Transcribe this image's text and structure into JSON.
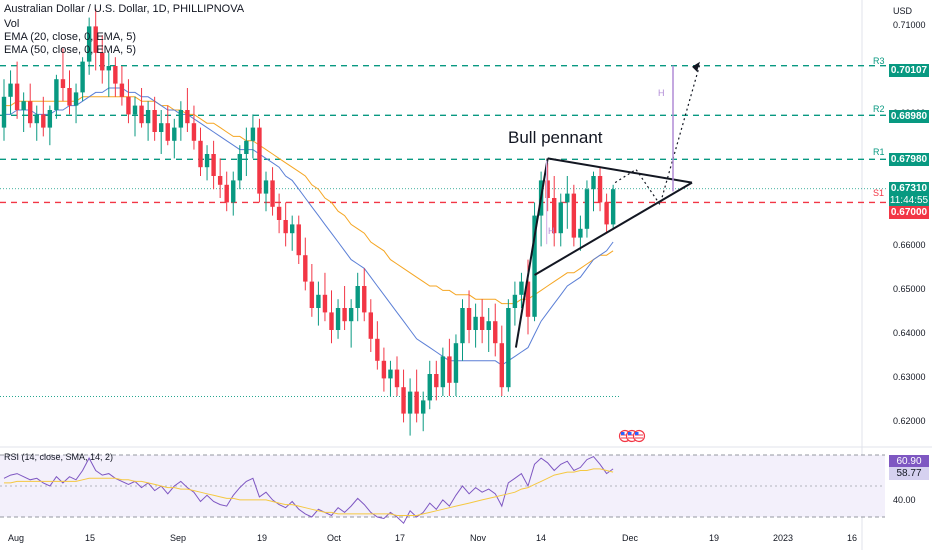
{
  "header": {
    "title": "Australian Dollar / U.S. Dollar, 1D, PHILLIPNOVA",
    "vol": "Vol",
    "ema20": "EMA (20, close, 0, EMA, 5)",
    "ema50": "EMA (50, close, 0, EMA, 5)"
  },
  "axis": {
    "currency": "USD",
    "y_ticks": [
      "0.71000",
      "0.70000",
      "0.69000",
      "0.68000",
      "0.67000",
      "0.66000",
      "0.65000",
      "0.64000",
      "0.63000",
      "0.62000"
    ],
    "x_ticks": [
      "Aug",
      "15",
      "Sep",
      "19",
      "Oct",
      "17",
      "Nov",
      "14",
      "Dec",
      "19",
      "2023",
      "16"
    ]
  },
  "levels": {
    "r3": {
      "tag": "R3",
      "value": "0.70107"
    },
    "r2": {
      "tag": "R2",
      "value": "0.68980"
    },
    "r1": {
      "tag": "R1",
      "value": "0.67980"
    },
    "s1": {
      "tag": "S1",
      "value": "0.67000"
    },
    "last": {
      "price": "0.67310",
      "countdown": "11:44:55"
    },
    "colors": {
      "resistance": "#089981",
      "support": "#f23645",
      "last": "#089981"
    }
  },
  "annotation": {
    "text": "Bull pennant",
    "h1": "H",
    "h2": "H"
  },
  "rsi": {
    "header": "RSI (14, close, SMA, 14, 2)",
    "value": "60.90",
    "sma": "58.77",
    "tick": "40.00"
  },
  "chart_data": {
    "type": "candlestick",
    "up_color": "#089981",
    "down_color": "#f23645",
    "ylim": [
      0.616,
      0.716
    ],
    "candles": [
      [
        0.687,
        0.698,
        0.684,
        0.694
      ],
      [
        0.694,
        0.7,
        0.69,
        0.697
      ],
      [
        0.697,
        0.702,
        0.689,
        0.691
      ],
      [
        0.691,
        0.695,
        0.686,
        0.693
      ],
      [
        0.693,
        0.697,
        0.687,
        0.688
      ],
      [
        0.688,
        0.692,
        0.684,
        0.69
      ],
      [
        0.69,
        0.694,
        0.685,
        0.687
      ],
      [
        0.687,
        0.692,
        0.683,
        0.691
      ],
      [
        0.691,
        0.699,
        0.689,
        0.698
      ],
      [
        0.698,
        0.705,
        0.693,
        0.696
      ],
      [
        0.696,
        0.7,
        0.69,
        0.692
      ],
      [
        0.692,
        0.697,
        0.688,
        0.695
      ],
      [
        0.695,
        0.703,
        0.693,
        0.702
      ],
      [
        0.702,
        0.712,
        0.699,
        0.71
      ],
      [
        0.71,
        0.714,
        0.7,
        0.704
      ],
      [
        0.704,
        0.708,
        0.697,
        0.7
      ],
      [
        0.7,
        0.704,
        0.694,
        0.701
      ],
      [
        0.701,
        0.703,
        0.694,
        0.697
      ],
      [
        0.697,
        0.701,
        0.692,
        0.694
      ],
      [
        0.694,
        0.698,
        0.688,
        0.69
      ],
      [
        0.69,
        0.694,
        0.685,
        0.692
      ],
      [
        0.692,
        0.696,
        0.687,
        0.688
      ],
      [
        0.688,
        0.693,
        0.684,
        0.691
      ],
      [
        0.691,
        0.694,
        0.684,
        0.686
      ],
      [
        0.686,
        0.691,
        0.681,
        0.688
      ],
      [
        0.688,
        0.692,
        0.683,
        0.684
      ],
      [
        0.684,
        0.689,
        0.68,
        0.687
      ],
      [
        0.687,
        0.693,
        0.684,
        0.691
      ],
      [
        0.691,
        0.696,
        0.686,
        0.688
      ],
      [
        0.688,
        0.692,
        0.682,
        0.684
      ],
      [
        0.684,
        0.687,
        0.676,
        0.678
      ],
      [
        0.678,
        0.683,
        0.675,
        0.681
      ],
      [
        0.681,
        0.684,
        0.673,
        0.676
      ],
      [
        0.676,
        0.68,
        0.671,
        0.674
      ],
      [
        0.674,
        0.677,
        0.668,
        0.67
      ],
      [
        0.67,
        0.677,
        0.667,
        0.675
      ],
      [
        0.675,
        0.683,
        0.673,
        0.681
      ],
      [
        0.681,
        0.687,
        0.676,
        0.684
      ],
      [
        0.684,
        0.69,
        0.68,
        0.687
      ],
      [
        0.687,
        0.689,
        0.67,
        0.672
      ],
      [
        0.672,
        0.677,
        0.668,
        0.675
      ],
      [
        0.675,
        0.678,
        0.667,
        0.669
      ],
      [
        0.669,
        0.672,
        0.663,
        0.666
      ],
      [
        0.666,
        0.67,
        0.66,
        0.663
      ],
      [
        0.663,
        0.667,
        0.659,
        0.665
      ],
      [
        0.665,
        0.667,
        0.656,
        0.658
      ],
      [
        0.658,
        0.662,
        0.65,
        0.652
      ],
      [
        0.652,
        0.656,
        0.644,
        0.646
      ],
      [
        0.646,
        0.652,
        0.642,
        0.649
      ],
      [
        0.649,
        0.654,
        0.643,
        0.645
      ],
      [
        0.645,
        0.65,
        0.638,
        0.641
      ],
      [
        0.641,
        0.648,
        0.639,
        0.646
      ],
      [
        0.646,
        0.651,
        0.641,
        0.643
      ],
      [
        0.643,
        0.648,
        0.637,
        0.646
      ],
      [
        0.646,
        0.654,
        0.643,
        0.651
      ],
      [
        0.651,
        0.655,
        0.643,
        0.645
      ],
      [
        0.645,
        0.648,
        0.636,
        0.639
      ],
      [
        0.639,
        0.643,
        0.632,
        0.634
      ],
      [
        0.634,
        0.637,
        0.627,
        0.63
      ],
      [
        0.63,
        0.634,
        0.626,
        0.632
      ],
      [
        0.632,
        0.635,
        0.626,
        0.628
      ],
      [
        0.628,
        0.632,
        0.62,
        0.622
      ],
      [
        0.622,
        0.63,
        0.617,
        0.627
      ],
      [
        0.627,
        0.632,
        0.62,
        0.622
      ],
      [
        0.622,
        0.627,
        0.618,
        0.625
      ],
      [
        0.625,
        0.634,
        0.623,
        0.631
      ],
      [
        0.631,
        0.634,
        0.625,
        0.628
      ],
      [
        0.628,
        0.637,
        0.626,
        0.635
      ],
      [
        0.635,
        0.639,
        0.626,
        0.629
      ],
      [
        0.629,
        0.64,
        0.626,
        0.638
      ],
      [
        0.638,
        0.648,
        0.634,
        0.646
      ],
      [
        0.646,
        0.65,
        0.638,
        0.641
      ],
      [
        0.641,
        0.647,
        0.637,
        0.644
      ],
      [
        0.644,
        0.648,
        0.638,
        0.641
      ],
      [
        0.641,
        0.646,
        0.636,
        0.643
      ],
      [
        0.643,
        0.647,
        0.635,
        0.638
      ],
      [
        0.638,
        0.642,
        0.626,
        0.628
      ],
      [
        0.628,
        0.648,
        0.627,
        0.646
      ],
      [
        0.646,
        0.652,
        0.642,
        0.649
      ],
      [
        0.649,
        0.654,
        0.646,
        0.652
      ],
      [
        0.652,
        0.657,
        0.64,
        0.644
      ],
      [
        0.644,
        0.67,
        0.643,
        0.667
      ],
      [
        0.667,
        0.677,
        0.66,
        0.675
      ],
      [
        0.675,
        0.679,
        0.668,
        0.671
      ],
      [
        0.671,
        0.676,
        0.66,
        0.663
      ],
      [
        0.663,
        0.672,
        0.66,
        0.67
      ],
      [
        0.67,
        0.676,
        0.664,
        0.672
      ],
      [
        0.672,
        0.674,
        0.66,
        0.662
      ],
      [
        0.662,
        0.667,
        0.659,
        0.664
      ],
      [
        0.664,
        0.675,
        0.662,
        0.673
      ],
      [
        0.673,
        0.677,
        0.668,
        0.676
      ],
      [
        0.676,
        0.678,
        0.668,
        0.67
      ],
      [
        0.67,
        0.672,
        0.663,
        0.665
      ],
      [
        0.665,
        0.674,
        0.664,
        0.673
      ]
    ],
    "ema20": [
      0.69,
      0.69,
      0.691,
      0.691,
      0.691,
      0.69,
      0.69,
      0.69,
      0.691,
      0.691,
      0.692,
      0.692,
      0.693,
      0.694,
      0.695,
      0.695,
      0.696,
      0.696,
      0.696,
      0.695,
      0.695,
      0.694,
      0.694,
      0.693,
      0.692,
      0.691,
      0.691,
      0.69,
      0.69,
      0.689,
      0.688,
      0.687,
      0.686,
      0.685,
      0.684,
      0.683,
      0.682,
      0.682,
      0.682,
      0.681,
      0.68,
      0.679,
      0.678,
      0.676,
      0.675,
      0.673,
      0.671,
      0.669,
      0.667,
      0.665,
      0.663,
      0.661,
      0.659,
      0.657,
      0.656,
      0.655,
      0.653,
      0.651,
      0.649,
      0.647,
      0.645,
      0.643,
      0.641,
      0.639,
      0.638,
      0.637,
      0.636,
      0.635,
      0.634,
      0.634,
      0.634,
      0.634,
      0.634,
      0.634,
      0.634,
      0.634,
      0.633,
      0.634,
      0.635,
      0.636,
      0.637,
      0.64,
      0.643,
      0.645,
      0.647,
      0.649,
      0.651,
      0.652,
      0.653,
      0.655,
      0.657,
      0.658,
      0.659,
      0.661
    ],
    "ema50": [
      0.692,
      0.692,
      0.693,
      0.693,
      0.693,
      0.693,
      0.693,
      0.693,
      0.693,
      0.693,
      0.693,
      0.693,
      0.694,
      0.694,
      0.694,
      0.694,
      0.694,
      0.694,
      0.694,
      0.694,
      0.694,
      0.693,
      0.693,
      0.693,
      0.692,
      0.692,
      0.691,
      0.691,
      0.69,
      0.69,
      0.689,
      0.688,
      0.688,
      0.687,
      0.686,
      0.685,
      0.685,
      0.684,
      0.684,
      0.683,
      0.682,
      0.681,
      0.68,
      0.679,
      0.678,
      0.677,
      0.676,
      0.674,
      0.673,
      0.671,
      0.67,
      0.668,
      0.667,
      0.665,
      0.664,
      0.663,
      0.661,
      0.66,
      0.659,
      0.657,
      0.656,
      0.655,
      0.654,
      0.653,
      0.652,
      0.651,
      0.651,
      0.65,
      0.65,
      0.649,
      0.649,
      0.649,
      0.648,
      0.648,
      0.648,
      0.648,
      0.647,
      0.647,
      0.647,
      0.648,
      0.648,
      0.649,
      0.65,
      0.651,
      0.652,
      0.653,
      0.654,
      0.654,
      0.655,
      0.656,
      0.657,
      0.658,
      0.658,
      0.659
    ],
    "rsi": [
      55,
      57,
      58,
      56,
      54,
      55,
      52,
      50,
      56,
      52,
      56,
      54,
      60,
      68,
      60,
      57,
      58,
      55,
      53,
      51,
      53,
      49,
      52,
      47,
      50,
      45,
      50,
      53,
      49,
      46,
      40,
      44,
      40,
      38,
      37,
      44,
      49,
      53,
      55,
      43,
      46,
      41,
      38,
      36,
      40,
      35,
      32,
      30,
      35,
      33,
      31,
      36,
      33,
      37,
      42,
      38,
      33,
      30,
      29,
      33,
      30,
      26,
      34,
      30,
      33,
      39,
      35,
      41,
      37,
      44,
      50,
      45,
      49,
      46,
      48,
      45,
      37,
      52,
      55,
      58,
      50,
      64,
      68,
      65,
      60,
      64,
      66,
      60,
      62,
      67,
      69,
      64,
      58,
      61
    ],
    "rsi_sma": [
      52,
      52,
      53,
      53,
      53,
      53,
      53,
      53,
      53,
      53,
      53,
      53,
      54,
      55,
      55,
      55,
      55,
      55,
      54,
      54,
      53,
      53,
      52,
      51,
      50,
      49,
      49,
      48,
      48,
      47,
      46,
      45,
      44,
      43,
      42,
      42,
      41,
      41,
      41,
      41,
      41,
      40,
      39,
      38,
      38,
      37,
      36,
      35,
      34,
      33,
      33,
      32,
      32,
      32,
      32,
      32,
      32,
      32,
      32,
      32,
      31,
      31,
      31,
      31,
      32,
      33,
      34,
      35,
      36,
      37,
      38,
      39,
      40,
      41,
      42,
      43,
      44,
      45,
      46,
      48,
      49,
      51,
      53,
      55,
      57,
      58,
      59,
      59,
      60,
      60,
      61,
      61,
      60,
      59
    ]
  }
}
